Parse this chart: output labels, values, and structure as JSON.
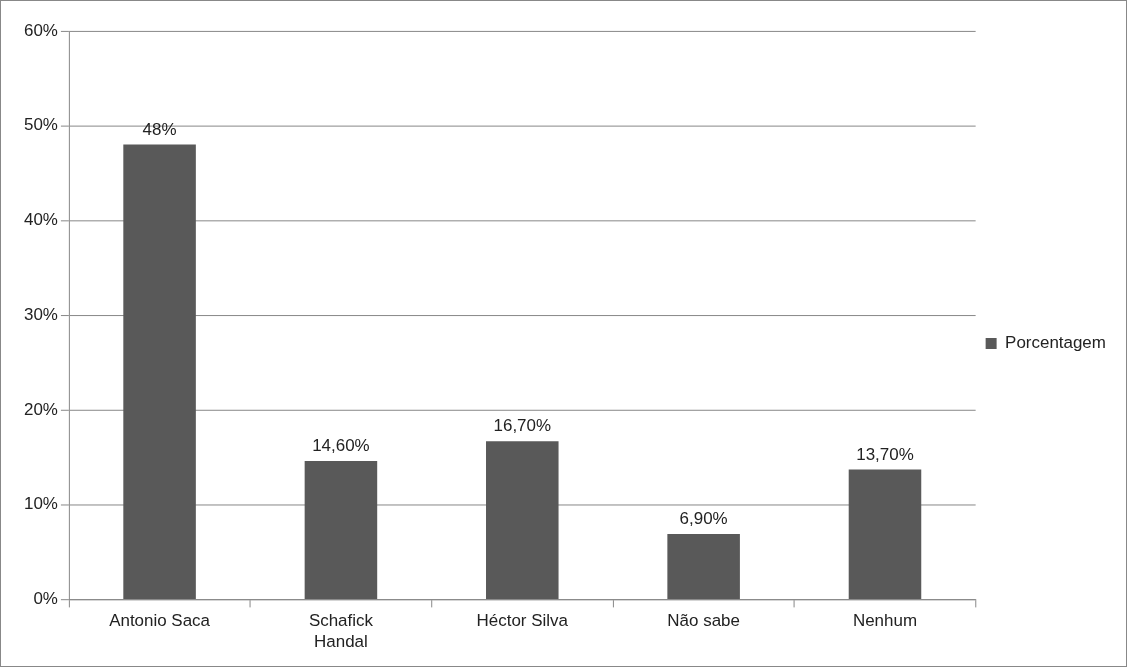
{
  "chart_data": {
    "type": "bar",
    "categories": [
      "Antonio Saca",
      "Schafick Handal",
      "Héctor Silva",
      "Não sabe",
      "Nenhum"
    ],
    "series": [
      {
        "name": "Porcentagem",
        "color": "#595959",
        "values": [
          48,
          14.6,
          16.7,
          6.9,
          13.7
        ],
        "value_labels": [
          "48%",
          "14,60%",
          "16,70%",
          "6,90%",
          "13,70%"
        ]
      }
    ],
    "ylim": [
      0,
      60
    ],
    "yticks": [
      {
        "value": 0,
        "label": "0%"
      },
      {
        "value": 10,
        "label": "10%"
      },
      {
        "value": 20,
        "label": "20%"
      },
      {
        "value": 30,
        "label": "30%"
      },
      {
        "value": 40,
        "label": "40%"
      },
      {
        "value": 50,
        "label": "50%"
      },
      {
        "value": 60,
        "label": "60%"
      }
    ],
    "grid": "y",
    "legend": "right"
  }
}
